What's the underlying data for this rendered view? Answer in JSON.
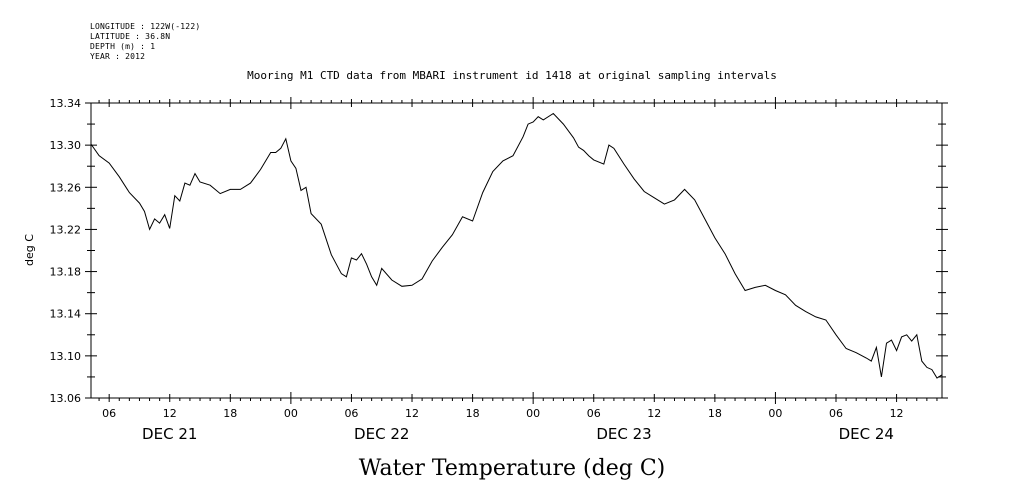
{
  "meta": {
    "longitude": "LONGITUDE : 122W(-122)",
    "latitude": "LATITUDE : 36.8N",
    "depth": "DEPTH (m) : 1",
    "year": "YEAR : 2012"
  },
  "chart_data": {
    "type": "line",
    "title": "Mooring M1 CTD data from MBARI instrument id 1418 at original sampling intervals",
    "xlabel": "Water Temperature (deg C)",
    "ylabel": "deg C",
    "ylim": [
      13.06,
      13.34
    ],
    "yticks": [
      "13.06",
      "13.10",
      "13.14",
      "13.18",
      "13.22",
      "13.26",
      "13.30",
      "13.34"
    ],
    "xlim_hours": [
      4.2,
      88.5
    ],
    "x_hour_ticks": [
      {
        "h": 6,
        "label": "06"
      },
      {
        "h": 12,
        "label": "12"
      },
      {
        "h": 18,
        "label": "18"
      },
      {
        "h": 24,
        "label": "00"
      },
      {
        "h": 30,
        "label": "06"
      },
      {
        "h": 36,
        "label": "12"
      },
      {
        "h": 42,
        "label": "18"
      },
      {
        "h": 48,
        "label": "00"
      },
      {
        "h": 54,
        "label": "06"
      },
      {
        "h": 60,
        "label": "12"
      },
      {
        "h": 66,
        "label": "18"
      },
      {
        "h": 72,
        "label": "00"
      },
      {
        "h": 78,
        "label": "06"
      },
      {
        "h": 84,
        "label": "12"
      }
    ],
    "x_day_labels": [
      {
        "h": 12,
        "label": "DEC 21"
      },
      {
        "h": 33,
        "label": "DEC 22"
      },
      {
        "h": 57,
        "label": "DEC 23"
      },
      {
        "h": 81,
        "label": "DEC 24"
      }
    ],
    "grid": false,
    "series": [
      {
        "x": [
          4.2,
          5.0,
          6.0,
          7.0,
          8.0,
          9.0,
          9.5,
          10.0,
          10.5,
          11.0,
          11.5,
          12.0,
          12.5,
          13.0,
          13.5,
          14.0,
          14.5,
          15.0,
          16.0,
          17.0,
          18.0,
          19.0,
          20.0,
          21.0,
          22.0,
          22.5,
          23.0,
          23.5,
          24.0,
          24.5,
          25.0,
          25.5,
          26.0,
          27.0,
          28.0,
          29.0,
          29.5,
          30.0,
          30.5,
          31.0,
          31.5,
          32.0,
          32.5,
          33.0,
          34.0,
          35.0,
          36.0,
          37.0,
          38.0,
          39.0,
          40.0,
          41.0,
          42.0,
          43.0,
          44.0,
          45.0,
          46.0,
          47.0,
          47.5,
          48.0,
          48.5,
          49.0,
          50.0,
          51.0,
          52.0,
          52.5,
          53.0,
          53.5,
          54.0,
          55.0,
          55.5,
          56.0,
          57.0,
          58.0,
          59.0,
          60.0,
          61.0,
          62.0,
          63.0,
          64.0,
          65.0,
          66.0,
          67.0,
          68.0,
          69.0,
          70.0,
          71.0,
          72.0,
          73.0,
          74.0,
          75.0,
          76.0,
          77.0,
          78.0,
          79.0,
          80.0,
          81.0,
          81.5,
          82.0,
          82.5,
          83.0,
          83.5,
          84.0,
          84.5,
          85.0,
          85.5,
          86.0,
          86.5,
          87.0,
          87.5,
          88.0,
          88.5
        ],
        "y": [
          13.301,
          13.29,
          13.283,
          13.27,
          13.255,
          13.245,
          13.237,
          13.22,
          13.23,
          13.226,
          13.234,
          13.221,
          13.252,
          13.247,
          13.264,
          13.262,
          13.273,
          13.265,
          13.262,
          13.254,
          13.258,
          13.258,
          13.264,
          13.277,
          13.293,
          13.293,
          13.297,
          13.306,
          13.285,
          13.278,
          13.257,
          13.26,
          13.235,
          13.225,
          13.196,
          13.178,
          13.175,
          13.193,
          13.191,
          13.197,
          13.187,
          13.175,
          13.167,
          13.183,
          13.172,
          13.166,
          13.167,
          13.173,
          13.19,
          13.203,
          13.215,
          13.232,
          13.228,
          13.255,
          13.275,
          13.285,
          13.29,
          13.308,
          13.32,
          13.322,
          13.327,
          13.324,
          13.33,
          13.32,
          13.307,
          13.298,
          13.295,
          13.29,
          13.286,
          13.282,
          13.3,
          13.297,
          13.282,
          13.268,
          13.256,
          13.25,
          13.244,
          13.248,
          13.258,
          13.248,
          13.23,
          13.212,
          13.197,
          13.178,
          13.162,
          13.165,
          13.167,
          13.162,
          13.158,
          13.148,
          13.142,
          13.137,
          13.134,
          13.12,
          13.107,
          13.103,
          13.098,
          13.095,
          13.108,
          13.08,
          13.112,
          13.115,
          13.105,
          13.118,
          13.12,
          13.114,
          13.12,
          13.095,
          13.089,
          13.087,
          13.079,
          13.082
        ]
      }
    ]
  }
}
